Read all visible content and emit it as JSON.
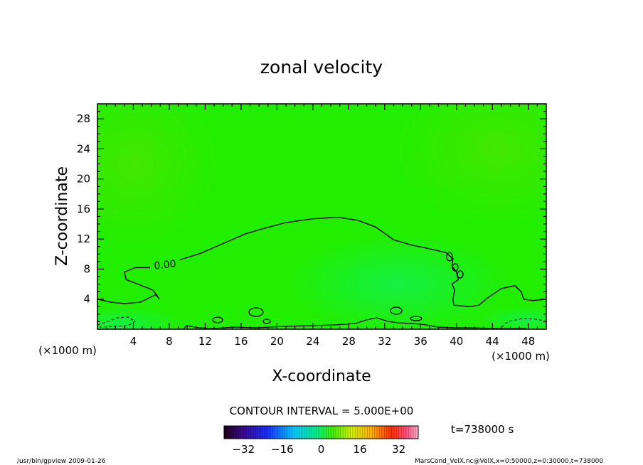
{
  "chart_data": {
    "type": "heatmap",
    "title": "zonal velocity",
    "xlabel": "X-coordinate",
    "ylabel": "Z-coordinate",
    "x_unit": "(×1000 m)",
    "y_unit": "(×1000 m)",
    "xlim": [
      0,
      50
    ],
    "ylim": [
      0,
      30
    ],
    "x_ticks": [
      4,
      8,
      12,
      16,
      20,
      24,
      28,
      32,
      36,
      40,
      44,
      48
    ],
    "y_ticks": [
      4,
      8,
      12,
      16,
      20,
      24,
      28
    ],
    "contour_label": "0.00",
    "contour_interval_text": "CONTOUR INTERVAL = 5.000E+00",
    "time_text": "t=738000 s",
    "colorbar_ticks": [
      -32,
      -16,
      0,
      16,
      32
    ],
    "colorbar_range": [
      -40,
      40
    ],
    "zero_contour": [
      [
        0,
        4.0
      ],
      [
        1.5,
        3.6
      ],
      [
        3,
        3.4
      ],
      [
        4.8,
        3.6
      ],
      [
        5.8,
        4.2
      ],
      [
        6.5,
        4.6
      ],
      [
        6.9,
        4.0
      ],
      [
        6.2,
        5.2
      ],
      [
        4.5,
        6.0
      ],
      [
        3.2,
        6.6
      ],
      [
        3.0,
        7.6
      ],
      [
        4.2,
        8.2
      ],
      [
        6.2,
        8.2
      ],
      [
        8.0,
        8.8
      ],
      [
        11.5,
        10.1
      ],
      [
        14.0,
        11.4
      ],
      [
        16.5,
        12.7
      ],
      [
        18.5,
        13.4
      ],
      [
        21,
        14.2
      ],
      [
        24,
        14.7
      ],
      [
        26.8,
        14.9
      ],
      [
        29,
        14.5
      ],
      [
        31,
        13.6
      ],
      [
        33,
        11.9
      ],
      [
        35,
        11.2
      ],
      [
        37,
        10.7
      ],
      [
        38.8,
        10.2
      ],
      [
        39.6,
        9.4
      ],
      [
        39.5,
        8.4
      ],
      [
        40.0,
        7.6
      ],
      [
        40.2,
        6.6
      ],
      [
        39.5,
        6.0
      ],
      [
        39.8,
        5.2
      ],
      [
        39.6,
        4.0
      ],
      [
        39.7,
        3.2
      ],
      [
        41.5,
        3.0
      ],
      [
        42.5,
        3.2
      ],
      [
        43.5,
        4.2
      ],
      [
        45,
        5.4
      ],
      [
        46.5,
        5.8
      ],
      [
        47.2,
        5.0
      ],
      [
        47.5,
        4.0
      ],
      [
        48.5,
        3.8
      ],
      [
        50,
        4.0
      ]
    ],
    "vmin_label": "-32",
    "vmax_label": "32"
  },
  "footer": {
    "left": "/usr/bin/gpview   2009-01-26",
    "right": "MarsCond_VelX.nc@VelX,x=0:50000,z=0:30000,t=738000"
  },
  "colors": {
    "field": "#22ee00",
    "field_light": "#5ee000",
    "field_cool": "#00f060",
    "frame": "#000000"
  }
}
